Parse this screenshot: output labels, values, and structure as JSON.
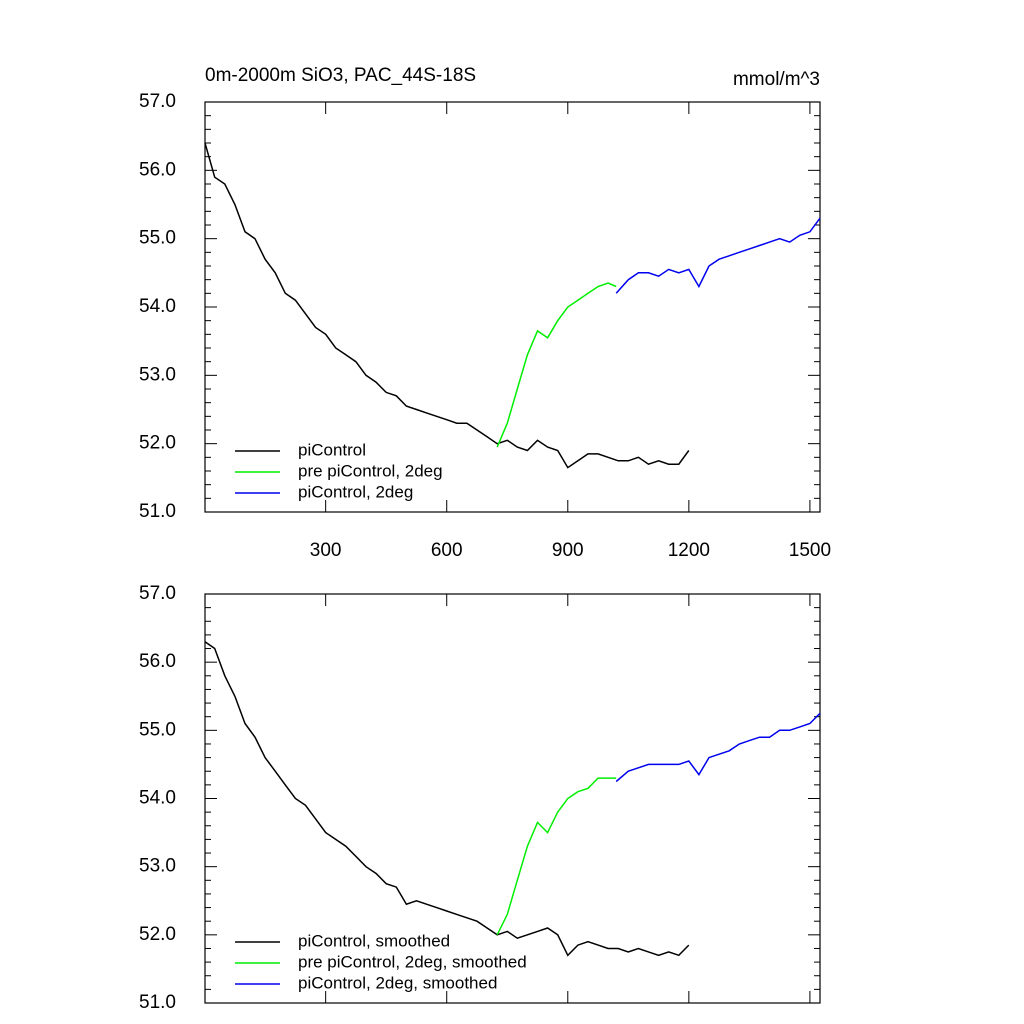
{
  "chart_data": [
    {
      "type": "line",
      "title": "0m-2000m SiO3, PAC_44S-18S",
      "units": "mmol/m^3",
      "xlim": [
        1,
        1525
      ],
      "xticks": [
        300,
        600,
        900,
        1200,
        1500
      ],
      "xtick_labels": true,
      "ylim": [
        51,
        57
      ],
      "yticks": [
        {
          "value": 51,
          "label": "51.0"
        },
        {
          "value": 52,
          "label": "52.0"
        },
        {
          "value": 53,
          "label": "53.0"
        },
        {
          "value": 54,
          "label": "54.0"
        },
        {
          "value": 55,
          "label": "55.0"
        },
        {
          "value": 56,
          "label": "56.0"
        },
        {
          "value": 57,
          "label": "57.0"
        }
      ],
      "legend": "bottom-left",
      "series": [
        {
          "name": "piControl",
          "color": "#000000",
          "x": [
            1,
            25,
            50,
            75,
            100,
            125,
            150,
            175,
            200,
            225,
            250,
            275,
            300,
            325,
            350,
            375,
            400,
            425,
            450,
            475,
            500,
            525,
            550,
            575,
            600,
            625,
            650,
            675,
            700,
            725,
            750,
            775,
            800,
            825,
            850,
            875,
            900,
            925,
            950,
            975,
            1000,
            1025,
            1050,
            1075,
            1100,
            1125,
            1150,
            1175,
            1200
          ],
          "values": [
            56.4,
            55.9,
            55.8,
            55.5,
            55.1,
            55.0,
            54.7,
            54.5,
            54.2,
            54.1,
            53.9,
            53.7,
            53.6,
            53.4,
            53.3,
            53.2,
            53.0,
            52.9,
            52.75,
            52.7,
            52.55,
            52.5,
            52.45,
            52.4,
            52.35,
            52.3,
            52.3,
            52.2,
            52.1,
            52.0,
            52.05,
            51.95,
            51.9,
            52.05,
            51.95,
            51.9,
            51.65,
            51.75,
            51.85,
            51.85,
            51.8,
            51.75,
            51.75,
            51.8,
            51.7,
            51.75,
            51.7,
            51.7,
            51.9
          ]
        },
        {
          "name": "pre piControl, 2deg",
          "color": "#00ee00",
          "x": [
            725,
            750,
            775,
            800,
            825,
            850,
            875,
            900,
            925,
            950,
            975,
            1000,
            1020
          ],
          "values": [
            51.95,
            52.3,
            52.8,
            53.3,
            53.65,
            53.55,
            53.8,
            54.0,
            54.1,
            54.2,
            54.3,
            54.35,
            54.3
          ]
        },
        {
          "name": "piControl, 2deg",
          "color": "#0000ee",
          "x": [
            1020,
            1050,
            1075,
            1100,
            1125,
            1150,
            1175,
            1200,
            1225,
            1250,
            1275,
            1300,
            1325,
            1350,
            1375,
            1400,
            1425,
            1450,
            1475,
            1500,
            1525
          ],
          "values": [
            54.2,
            54.4,
            54.5,
            54.5,
            54.45,
            54.55,
            54.5,
            54.55,
            54.3,
            54.6,
            54.7,
            54.75,
            54.8,
            54.85,
            54.9,
            54.95,
            55.0,
            54.95,
            55.05,
            55.1,
            55.3
          ]
        }
      ]
    },
    {
      "type": "line",
      "xlim": [
        1,
        1525
      ],
      "xticks": [
        300,
        600,
        900,
        1200,
        1500
      ],
      "xtick_labels": false,
      "ylim": [
        51,
        57
      ],
      "yticks": [
        {
          "value": 51,
          "label": "51.0"
        },
        {
          "value": 52,
          "label": "52.0"
        },
        {
          "value": 53,
          "label": "53.0"
        },
        {
          "value": 54,
          "label": "54.0"
        },
        {
          "value": 55,
          "label": "55.0"
        },
        {
          "value": 56,
          "label": "56.0"
        },
        {
          "value": 57,
          "label": "57.0"
        }
      ],
      "legend": "bottom-left",
      "series": [
        {
          "name": "piControl, smoothed",
          "color": "#000000",
          "x": [
            1,
            25,
            50,
            75,
            100,
            125,
            150,
            175,
            200,
            225,
            250,
            275,
            300,
            325,
            350,
            375,
            400,
            425,
            450,
            475,
            500,
            525,
            550,
            575,
            600,
            625,
            650,
            675,
            700,
            725,
            750,
            775,
            800,
            825,
            850,
            875,
            900,
            925,
            950,
            975,
            1000,
            1025,
            1050,
            1075,
            1100,
            1125,
            1150,
            1175,
            1200
          ],
          "values": [
            56.3,
            56.2,
            55.8,
            55.5,
            55.1,
            54.9,
            54.6,
            54.4,
            54.2,
            54.0,
            53.9,
            53.7,
            53.5,
            53.4,
            53.3,
            53.15,
            53.0,
            52.9,
            52.75,
            52.7,
            52.45,
            52.5,
            52.45,
            52.4,
            52.35,
            52.3,
            52.25,
            52.2,
            52.1,
            52.0,
            52.05,
            51.95,
            52.0,
            52.05,
            52.1,
            52.0,
            51.7,
            51.85,
            51.9,
            51.85,
            51.8,
            51.8,
            51.75,
            51.8,
            51.75,
            51.7,
            51.75,
            51.7,
            51.85
          ]
        },
        {
          "name": "pre piControl, 2deg, smoothed",
          "color": "#00ee00",
          "x": [
            725,
            750,
            775,
            800,
            825,
            850,
            875,
            900,
            925,
            950,
            975,
            1000,
            1020
          ],
          "values": [
            52.0,
            52.3,
            52.8,
            53.3,
            53.65,
            53.5,
            53.8,
            54.0,
            54.1,
            54.15,
            54.3,
            54.3,
            54.3
          ]
        },
        {
          "name": "piControl, 2deg, smoothed",
          "color": "#0000ee",
          "x": [
            1020,
            1050,
            1075,
            1100,
            1125,
            1150,
            1175,
            1200,
            1225,
            1250,
            1275,
            1300,
            1325,
            1350,
            1375,
            1400,
            1425,
            1450,
            1475,
            1500,
            1525
          ],
          "values": [
            54.25,
            54.4,
            54.45,
            54.5,
            54.5,
            54.5,
            54.5,
            54.55,
            54.35,
            54.6,
            54.65,
            54.7,
            54.8,
            54.85,
            54.9,
            54.9,
            55.0,
            55.0,
            55.05,
            55.1,
            55.25
          ]
        }
      ]
    }
  ]
}
